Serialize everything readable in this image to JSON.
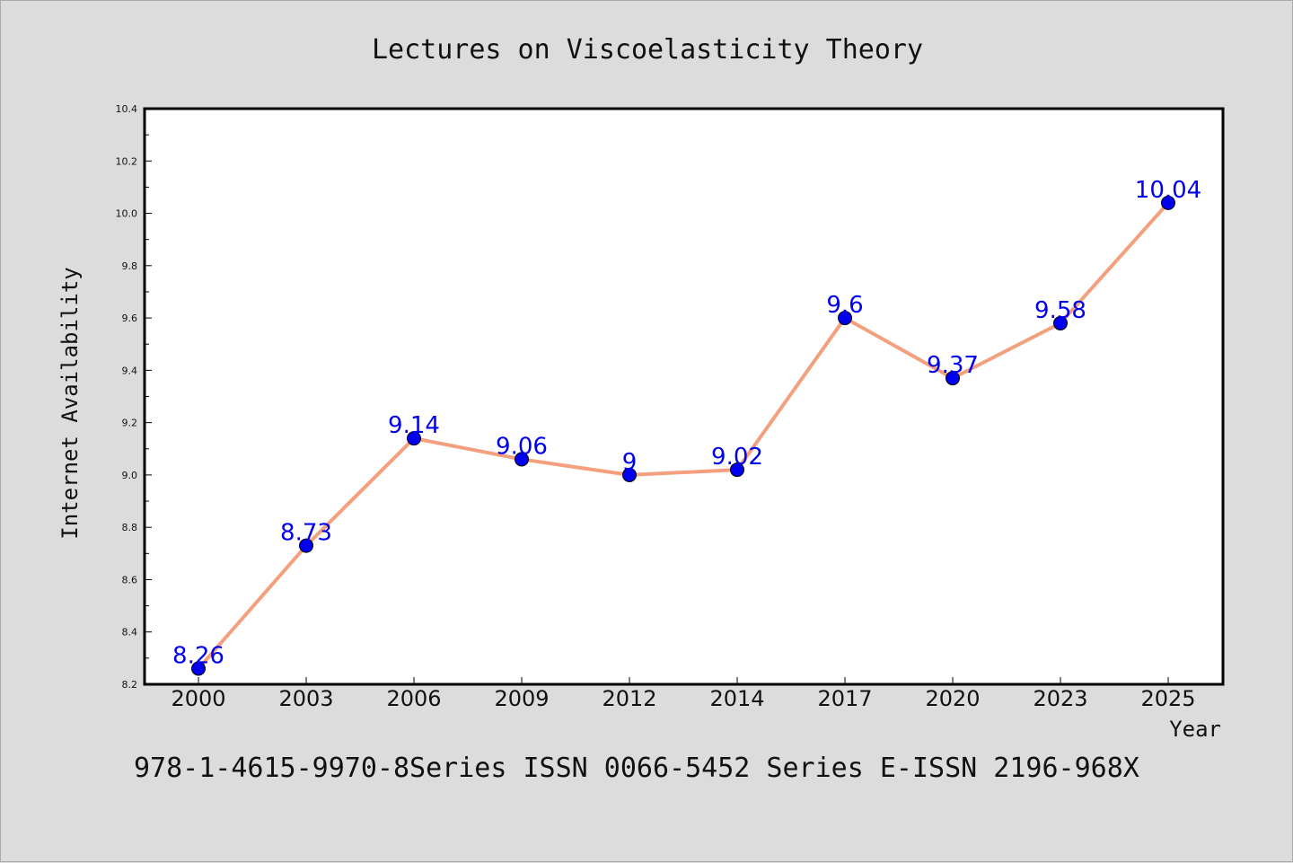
{
  "chart_data": {
    "type": "line",
    "title": "Lectures on Viscoelasticity Theory",
    "xlabel": "Year",
    "ylabel": "Internet Availability",
    "categories": [
      "2000",
      "2003",
      "2006",
      "2009",
      "2012",
      "2014",
      "2017",
      "2020",
      "2023",
      "2025"
    ],
    "values": [
      8.26,
      8.73,
      9.14,
      9.06,
      9.0,
      9.02,
      9.6,
      9.37,
      9.58,
      10.04
    ],
    "data_labels": [
      "8.26",
      "8.73",
      "9.14",
      "9.06",
      "9",
      "9.02",
      "9.6",
      "9.37",
      "9.58",
      "10.04"
    ],
    "ylim": [
      8.2,
      10.4
    ],
    "yticks": [
      "8.2",
      "8.4",
      "8.6",
      "8.8",
      "9.0",
      "9.2",
      "9.4",
      "9.6",
      "9.8",
      "10.0",
      "10.2",
      "10.4"
    ],
    "grid": false,
    "line_color": "#f4a07e",
    "marker_color": "#0000ee",
    "label_color": "#0000ee"
  },
  "footer": "978-1-4615-9970-8Series ISSN 0066-5452 Series E-ISSN 2196-968X"
}
